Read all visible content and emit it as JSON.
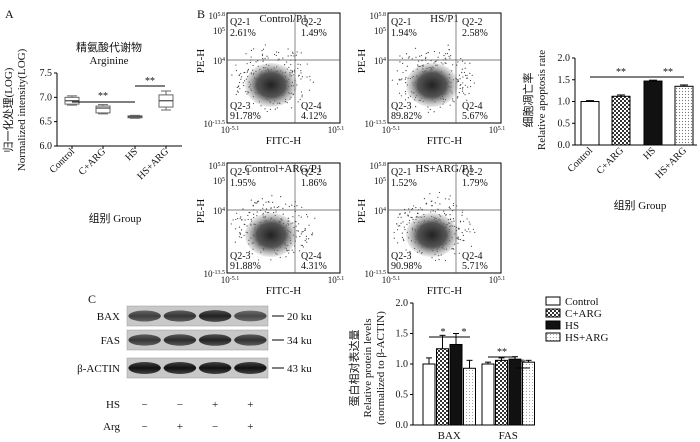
{
  "panels": {
    "a": "A",
    "b": "B",
    "c": "C"
  },
  "box_chart": {
    "title_cn": "精氨酸代谢物",
    "title_en": "Arginine",
    "ylabel_cn": "归一化处理(LOG)",
    "ylabel_en": "Normalized intensity(LOG)",
    "xlabel": "组别 Group",
    "yticks": [
      "6.0",
      "6.5",
      "7.0",
      "7.5"
    ],
    "ymin": 6.0,
    "ymax": 7.5,
    "groups": [
      {
        "label": "Control",
        "min": 6.84,
        "q1": 6.86,
        "median": 6.93,
        "q3": 7.0,
        "max": 7.03
      },
      {
        "label": "C+ARG",
        "min": 6.66,
        "q1": 6.68,
        "median": 6.78,
        "q3": 6.82,
        "max": 6.85
      },
      {
        "label": "HS",
        "min": 6.57,
        "q1": 6.58,
        "median": 6.6,
        "q3": 6.62,
        "max": 6.63
      },
      {
        "label": "HS+ARG",
        "min": 6.74,
        "q1": 6.8,
        "median": 6.93,
        "q3": 7.05,
        "max": 7.13
      }
    ],
    "sig": [
      "**",
      "**"
    ]
  },
  "flow": {
    "x_label": "FITC-H",
    "y_label": "PE-H",
    "x_ticks": [
      "10^-5.1",
      "10^5.1"
    ],
    "y_ticks": [
      "10^5.8",
      "10^5",
      "10^4",
      "10^-13.5"
    ],
    "plots": [
      {
        "title": "Control/P1",
        "q1": "2.61%",
        "q2": "1.49%",
        "q3": "91.78%",
        "q4": "4.12%"
      },
      {
        "title": "HS/P1",
        "q1": "1.94%",
        "q2": "2.58%",
        "q3": "89.82%",
        "q4": "5.67%"
      },
      {
        "title": "Control+ARG/P1",
        "q1": "1.95%",
        "q2": "1.86%",
        "q3": "91.88%",
        "q4": "4.31%"
      },
      {
        "title": "HS+ARG/P1",
        "q1": "1.52%",
        "q2": "1.79%",
        "q3": "90.98%",
        "q4": "5.71%"
      }
    ],
    "q_names": {
      "q1": "Q2-1",
      "q2": "Q2-2",
      "q3": "Q2-3",
      "q4": "Q2-4"
    }
  },
  "apoptosis_chart": {
    "ylabel_cn": "细胞凋亡率",
    "ylabel_en": "Relative apoptosis rate",
    "xlabel": "组别 Group",
    "yticks": [
      "0.0",
      "0.5",
      "1.0",
      "1.5",
      "2.0"
    ],
    "ymax": 2.0,
    "categories": [
      "Control",
      "C+ARG",
      "HS",
      "HS+ARG"
    ],
    "values": [
      1.0,
      1.12,
      1.47,
      1.35
    ],
    "errors": [
      0.02,
      0.03,
      0.02,
      0.03
    ],
    "sig": [
      "**",
      "**"
    ]
  },
  "blot": {
    "rows": [
      "BAX",
      "FAS",
      "β-ACTIN"
    ],
    "sizes": [
      "20 ku",
      "34 ku",
      "43 ku"
    ],
    "hs_label": "HS",
    "arg_label": "Arg",
    "hs": [
      "−",
      "−",
      "+",
      "+"
    ],
    "arg": [
      "−",
      "+",
      "−",
      "+"
    ]
  },
  "protein_chart": {
    "ylabel_cn": "蛋白相对表达量",
    "ylabel_en1": "Relative protein levels",
    "ylabel_en2": "(normalized to β-ACTIN)",
    "yticks": [
      "0.0",
      "0.5",
      "1.0",
      "1.5",
      "2.0"
    ],
    "ymax": 2.0,
    "categories": [
      "BAX",
      "FAS"
    ],
    "series": [
      {
        "name": "Control",
        "values": [
          1.0,
          1.0
        ],
        "errors": [
          0.1,
          0.03
        ]
      },
      {
        "name": "C+ARG",
        "values": [
          1.25,
          1.06
        ],
        "errors": [
          0.22,
          0.04
        ]
      },
      {
        "name": "HS",
        "values": [
          1.32,
          1.08
        ],
        "errors": [
          0.18,
          0.04
        ]
      },
      {
        "name": "HS+ARG",
        "values": [
          0.93,
          1.03
        ],
        "errors": [
          0.13,
          0.03
        ]
      }
    ],
    "sig": [
      "*",
      "*",
      "**",
      "*"
    ]
  }
}
